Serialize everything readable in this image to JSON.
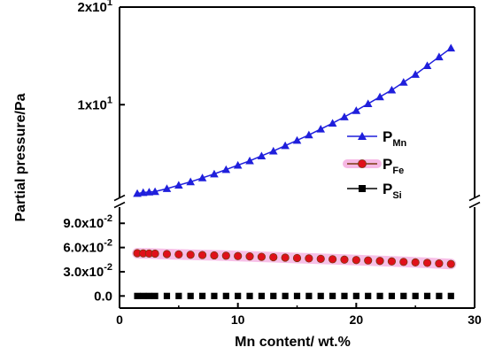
{
  "chart_data": {
    "type": "scatter",
    "xlabel": "Mn content/ wt.%",
    "ylabel": "Partial pressure/Pa",
    "xlim": [
      0,
      30
    ],
    "x_ticks": [
      {
        "value": 0,
        "label": "0"
      },
      {
        "value": 10,
        "label": "10"
      },
      {
        "value": 20,
        "label": "20"
      },
      {
        "value": 30,
        "label": "30"
      }
    ],
    "y_axis_break": true,
    "upper_ylim": [
      0.5,
      20
    ],
    "upper_ticks": [
      {
        "value": 10,
        "label_base": "1x10",
        "label_exp": "1"
      },
      {
        "value": 20,
        "label_base": "2x10",
        "label_exp": "1"
      }
    ],
    "lower_ylim": [
      -0.015,
      0.11
    ],
    "lower_ticks": [
      {
        "value": 0.0,
        "label_base": "0.0",
        "label_exp": ""
      },
      {
        "value": 0.03,
        "label_base": "3.0x10",
        "label_exp": "-2"
      },
      {
        "value": 0.06,
        "label_base": "6.0x10",
        "label_exp": "-2"
      },
      {
        "value": 0.09,
        "label_base": "9.0x10",
        "label_exp": "-2"
      }
    ],
    "legend_position": "middle-right",
    "series": [
      {
        "name": "P",
        "name_sub": "Mn",
        "panel": "upper",
        "marker": "triangle",
        "color": "#1f1fdc",
        "x": [
          1.5,
          2.0,
          2.5,
          3.0,
          4.0,
          5.0,
          6.0,
          7.0,
          8.0,
          9.0,
          10.0,
          11.0,
          12.0,
          13.0,
          14.0,
          15.0,
          16.0,
          17.0,
          18.0,
          19.0,
          20.0,
          21.0,
          22.0,
          23.0,
          24.0,
          25.0,
          26.0,
          27.0,
          28.0
        ],
        "y": [
          0.9,
          1.0,
          1.05,
          1.1,
          1.4,
          1.75,
          2.1,
          2.5,
          2.9,
          3.35,
          3.8,
          4.25,
          4.75,
          5.25,
          5.8,
          6.35,
          6.9,
          7.5,
          8.1,
          8.75,
          9.4,
          10.1,
          10.8,
          11.5,
          12.3,
          13.1,
          14.0,
          14.9,
          15.8
        ]
      },
      {
        "name": "P",
        "name_sub": "Fe",
        "panel": "lower",
        "marker": "circle",
        "color": "#e0101a",
        "edge": "#7a3a10",
        "halo": "#f6b8e4",
        "x": [
          1.5,
          2.0,
          2.5,
          3.0,
          4.0,
          5.0,
          6.0,
          7.0,
          8.0,
          9.0,
          10.0,
          11.0,
          12.0,
          13.0,
          14.0,
          15.0,
          16.0,
          17.0,
          18.0,
          19.0,
          20.0,
          21.0,
          22.0,
          23.0,
          24.0,
          25.0,
          26.0,
          27.0,
          28.0
        ],
        "y": [
          0.053,
          0.0528,
          0.0526,
          0.0524,
          0.0519,
          0.0515,
          0.0511,
          0.0507,
          0.0503,
          0.0499,
          0.0494,
          0.049,
          0.0485,
          0.048,
          0.0475,
          0.047,
          0.0465,
          0.046,
          0.0455,
          0.045,
          0.0445,
          0.044,
          0.0434,
          0.0428,
          0.0422,
          0.0416,
          0.041,
          0.0403,
          0.0396
        ]
      },
      {
        "name": "P",
        "name_sub": "Si",
        "panel": "lower",
        "marker": "square",
        "color": "#000000",
        "x": [
          1.5,
          2.0,
          2.5,
          3.0,
          4.0,
          5.0,
          6.0,
          7.0,
          8.0,
          9.0,
          10.0,
          11.0,
          12.0,
          13.0,
          14.0,
          15.0,
          16.0,
          17.0,
          18.0,
          19.0,
          20.0,
          21.0,
          22.0,
          23.0,
          24.0,
          25.0,
          26.0,
          27.0,
          28.0
        ],
        "y": [
          0.0,
          0.0,
          0.0,
          0.0,
          0.0,
          0.0,
          0.0,
          0.0,
          0.0,
          0.0,
          0.0,
          0.0,
          0.0,
          0.0,
          0.0,
          0.0,
          0.0,
          0.0,
          0.0,
          0.0,
          0.0,
          0.0,
          0.0,
          0.0,
          0.0,
          0.0,
          0.0,
          0.0,
          0.0
        ]
      }
    ]
  }
}
